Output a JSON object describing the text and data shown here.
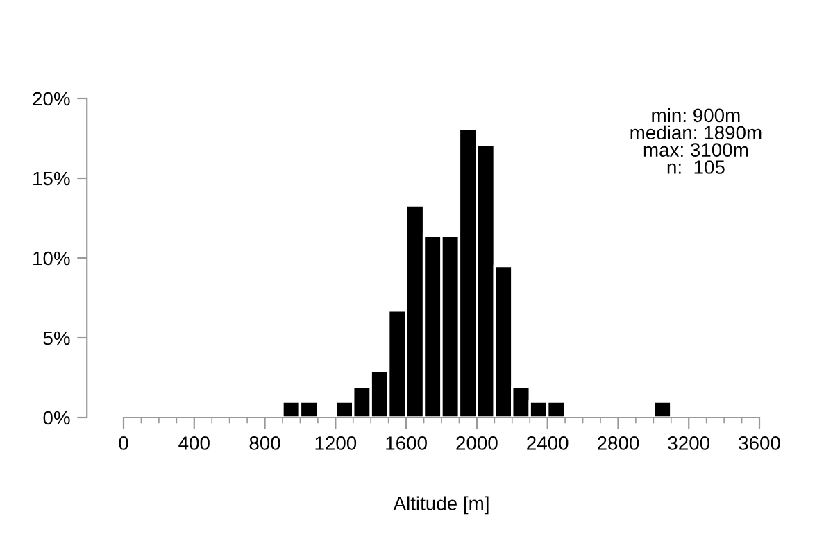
{
  "chart_data": {
    "type": "histogram",
    "xlabel": "Altitude [m]",
    "bins": [
      900,
      1000,
      1100,
      1200,
      1300,
      1400,
      1500,
      1600,
      1700,
      1800,
      1900,
      2000,
      2100,
      2200,
      2300,
      2400,
      2500,
      2600,
      2700,
      2800,
      2900,
      3000,
      3100,
      3200
    ],
    "values": [
      1.0,
      1.0,
      0,
      1.0,
      1.9,
      2.9,
      6.7,
      13.3,
      11.4,
      11.4,
      18.1,
      17.1,
      9.5,
      1.9,
      1.0,
      1.0,
      0,
      0,
      0,
      0,
      0,
      1.0,
      0
    ],
    "color": "#000000",
    "xlim": [
      0,
      3600
    ],
    "xticks": [
      0,
      400,
      800,
      1200,
      1600,
      2000,
      2400,
      2800,
      3200,
      3600
    ],
    "ylim": [
      0,
      20
    ],
    "yticks": [
      {
        "value": 0,
        "label": "0%"
      },
      {
        "value": 5,
        "label": "5%"
      },
      {
        "value": 10,
        "label": "10%"
      },
      {
        "value": 15,
        "label": "15%"
      },
      {
        "value": 20,
        "label": "20%"
      }
    ],
    "annotations": [
      "min: 900m\nmedian: 1890m\nmax: 3100m\nn:  105"
    ],
    "grid": false,
    "legend": false
  }
}
